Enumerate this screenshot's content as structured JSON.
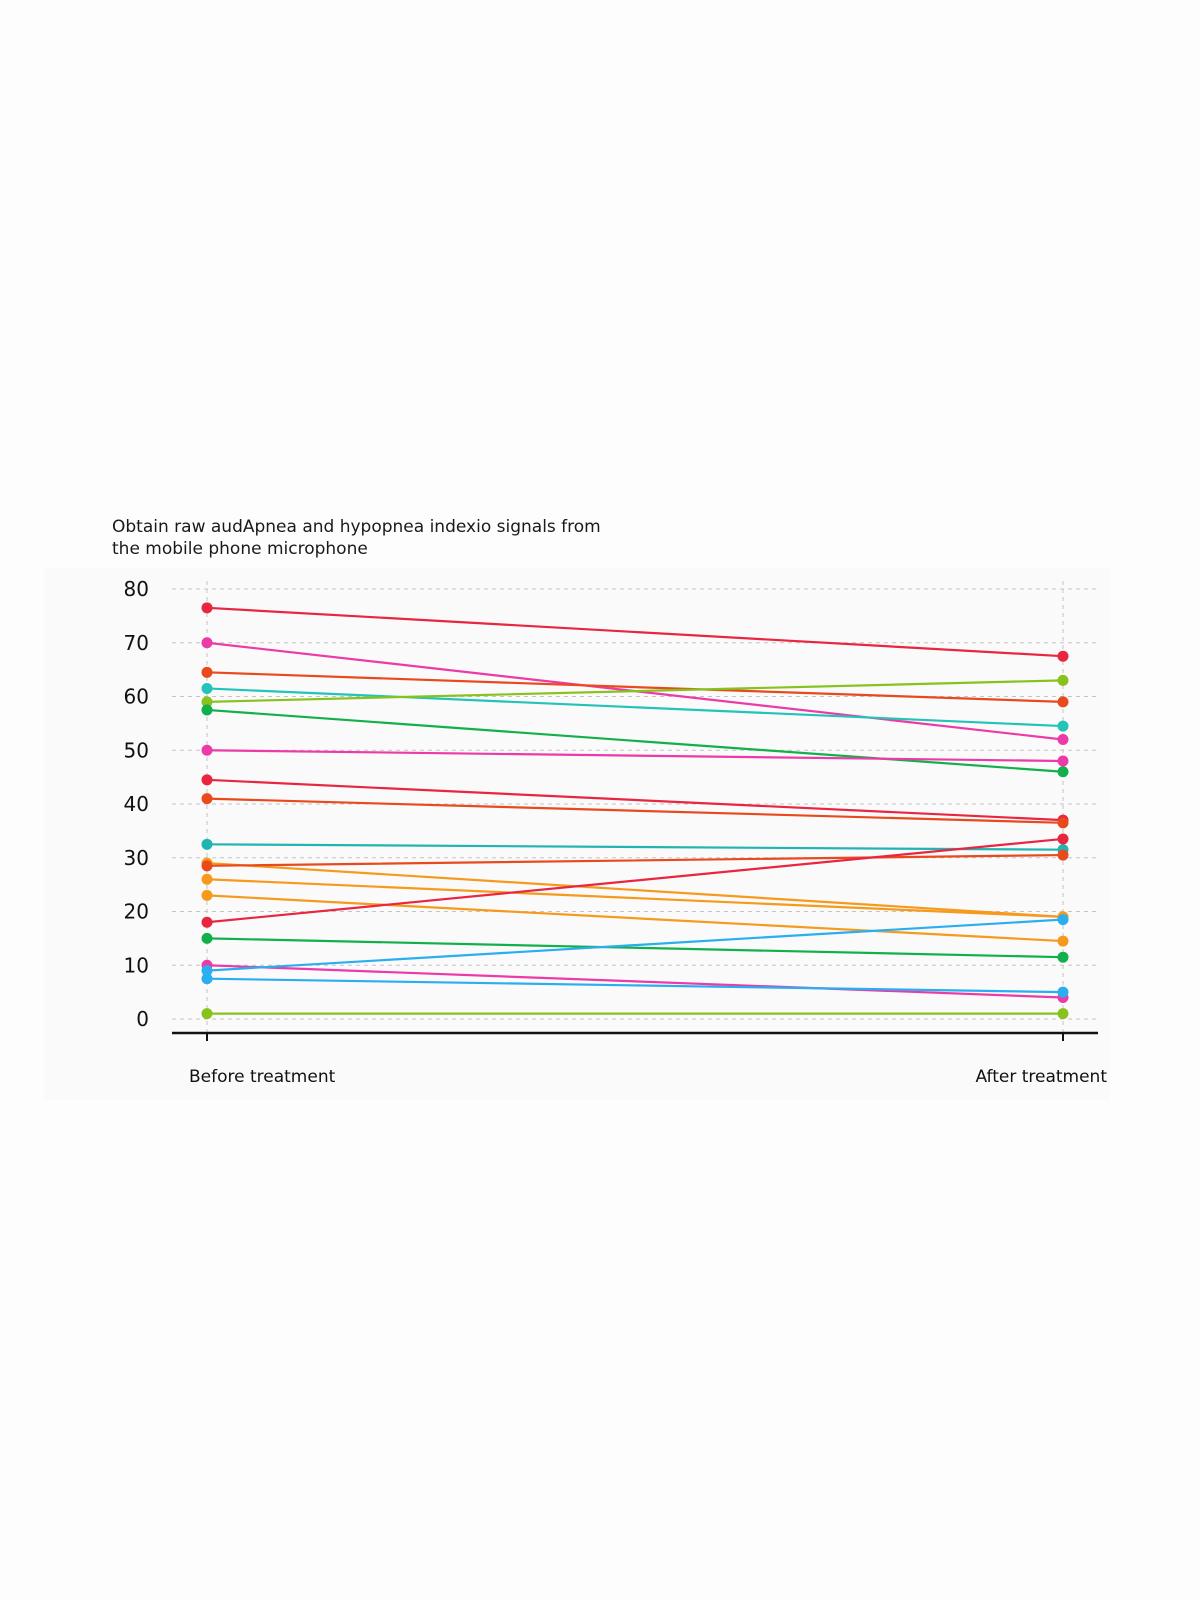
{
  "chart_data": {
    "type": "line",
    "title": "Obtain raw audApnea and hypopnea indexio signals from\nthe mobile phone microphone",
    "categories": [
      "Before treatment",
      "After treatment"
    ],
    "ylim": [
      0,
      80
    ],
    "yticks": [
      0,
      10,
      20,
      30,
      40,
      50,
      60,
      70,
      80
    ],
    "grid": true,
    "legend": "none",
    "series": [
      {
        "color": "#e8263f",
        "values": [
          76.5,
          67.5
        ]
      },
      {
        "color": "#ec3aa8",
        "values": [
          70,
          52
        ]
      },
      {
        "color": "#e84a1e",
        "values": [
          64.5,
          59
        ]
      },
      {
        "color": "#22c4b8",
        "values": [
          61.5,
          54.5
        ]
      },
      {
        "color": "#88c21c",
        "values": [
          59,
          63
        ]
      },
      {
        "color": "#12b04a",
        "values": [
          57.5,
          46
        ]
      },
      {
        "color": "#ec3aa8",
        "values": [
          50,
          48
        ]
      },
      {
        "color": "#e8263f",
        "values": [
          44.5,
          37
        ]
      },
      {
        "color": "#e84a1e",
        "values": [
          41,
          36.5
        ]
      },
      {
        "color": "#22b4b0",
        "values": [
          32.5,
          31.5
        ]
      },
      {
        "color": "#f59a1c",
        "values": [
          29,
          19
        ]
      },
      {
        "color": "#e84a1e",
        "values": [
          28.5,
          30.5
        ]
      },
      {
        "color": "#f59a1c",
        "values": [
          26,
          19
        ]
      },
      {
        "color": "#f59a1c",
        "values": [
          23,
          14.5
        ]
      },
      {
        "color": "#e8263f",
        "values": [
          18,
          33.5
        ]
      },
      {
        "color": "#12b04a",
        "values": [
          15,
          11.5
        ]
      },
      {
        "color": "#ec3aa8",
        "values": [
          10,
          4
        ]
      },
      {
        "color": "#2aaef0",
        "values": [
          9,
          18.5
        ]
      },
      {
        "color": "#2aaef0",
        "values": [
          7.5,
          5
        ]
      },
      {
        "color": "#88c21c",
        "values": [
          1,
          1
        ]
      }
    ]
  }
}
